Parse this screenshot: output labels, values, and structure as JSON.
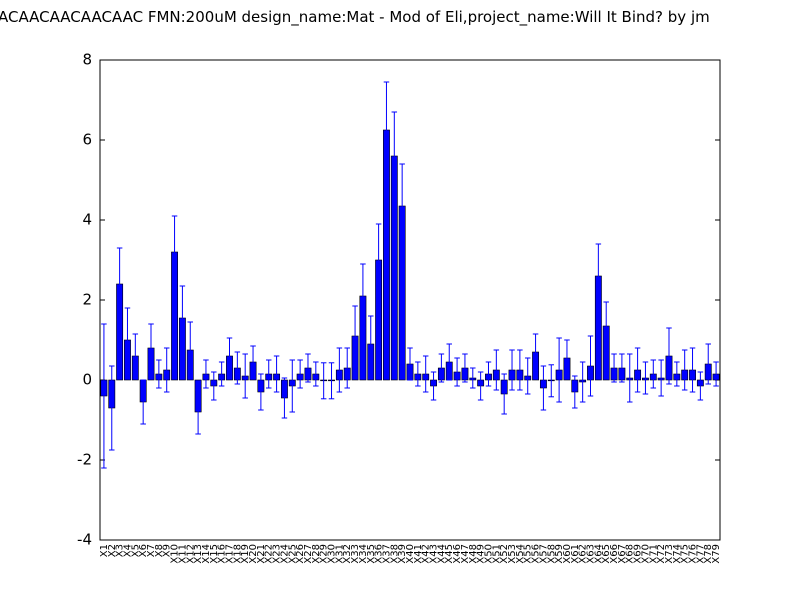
{
  "chart_data": {
    "type": "bar",
    "title": "ACAACAACAACAAC  FMN:200uM  design_name:Mat - Mod of Eli,project_name:Will It Bind? by jm",
    "categories": [
      "X1",
      "X2",
      "X3",
      "X4",
      "X5",
      "X6",
      "X7",
      "X8",
      "X9",
      "X10",
      "X11",
      "X12",
      "X13",
      "X14",
      "X15",
      "X16",
      "X17",
      "X18",
      "X19",
      "X20",
      "X21",
      "X22",
      "X23",
      "X24",
      "X25",
      "X26",
      "X27",
      "X28",
      "X29",
      "X30",
      "X31",
      "X32",
      "X33",
      "X34",
      "X35",
      "X36",
      "X37",
      "X38",
      "X39",
      "X40",
      "X41",
      "X42",
      "X43",
      "X44",
      "X45",
      "X46",
      "X47",
      "X48",
      "X49",
      "X50",
      "X51",
      "X52",
      "X53",
      "X54",
      "X55",
      "X56",
      "X57",
      "X58",
      "X59",
      "X60",
      "X61",
      "X62",
      "X63",
      "X64",
      "X65",
      "X66",
      "X67",
      "X68",
      "X69",
      "X70",
      "X71",
      "X72",
      "X73",
      "X74",
      "X75",
      "X76",
      "X77",
      "X78",
      "X79"
    ],
    "values": [
      -0.4,
      -0.7,
      2.4,
      1.0,
      0.6,
      -0.55,
      0.8,
      0.15,
      0.25,
      3.2,
      1.55,
      0.75,
      -0.8,
      0.15,
      -0.15,
      0.15,
      0.6,
      0.3,
      0.1,
      0.45,
      -0.3,
      0.15,
      0.15,
      -0.45,
      -0.15,
      0.15,
      0.3,
      0.15,
      -0.02,
      -0.02,
      0.25,
      0.3,
      1.1,
      2.1,
      0.9,
      3.0,
      6.25,
      5.6,
      4.35,
      0.4,
      0.15,
      0.15,
      -0.15,
      0.3,
      0.45,
      0.2,
      0.3,
      0.05,
      -0.15,
      0.15,
      0.25,
      -0.35,
      0.25,
      0.25,
      0.1,
      0.7,
      -0.2,
      -0.02,
      0.25,
      0.55,
      -0.3,
      -0.05,
      0.35,
      2.6,
      1.35,
      0.3,
      0.3,
      0.05,
      0.25,
      0.05,
      0.15,
      0.05,
      0.6,
      0.15,
      0.25,
      0.25,
      -0.15,
      0.4,
      0.15
    ],
    "errors": [
      1.8,
      1.05,
      0.9,
      0.8,
      0.55,
      0.55,
      0.6,
      0.35,
      0.55,
      0.9,
      0.8,
      0.7,
      0.55,
      0.35,
      0.35,
      0.3,
      0.45,
      0.4,
      0.55,
      0.4,
      0.45,
      0.35,
      0.45,
      0.5,
      0.65,
      0.35,
      0.35,
      0.3,
      0.45,
      0.45,
      0.55,
      0.5,
      0.75,
      0.8,
      0.7,
      0.9,
      1.2,
      1.1,
      1.05,
      0.4,
      0.3,
      0.45,
      0.35,
      0.35,
      0.45,
      0.35,
      0.35,
      0.25,
      0.35,
      0.3,
      0.5,
      0.5,
      0.5,
      0.5,
      0.45,
      0.45,
      0.55,
      0.4,
      0.8,
      0.45,
      0.4,
      0.5,
      0.75,
      0.8,
      0.6,
      0.35,
      0.35,
      0.6,
      0.55,
      0.4,
      0.35,
      0.45,
      0.7,
      0.3,
      0.5,
      0.55,
      0.35,
      0.5,
      0.3
    ],
    "color": "#0000ff",
    "ylim": [
      -4,
      8
    ],
    "yticks": [
      -4,
      -2,
      0,
      2,
      4,
      6,
      8
    ]
  }
}
